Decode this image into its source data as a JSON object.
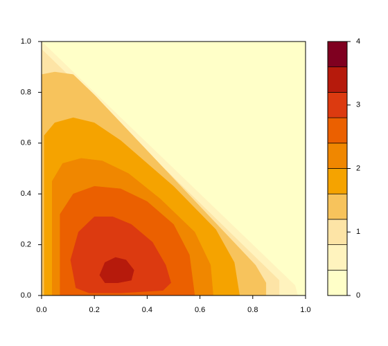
{
  "chart_data": {
    "type": "contour",
    "xlim": [
      0,
      1
    ],
    "ylim": [
      0,
      1
    ],
    "xticks": [
      {
        "value": 0,
        "label": "0.0"
      },
      {
        "value": 0.2,
        "label": "0.2"
      },
      {
        "value": 0.4,
        "label": "0.4"
      },
      {
        "value": 0.6,
        "label": "0.6"
      },
      {
        "value": 0.8,
        "label": "0.8"
      },
      {
        "value": 1,
        "label": "1.0"
      }
    ],
    "yticks": [
      {
        "value": 0,
        "label": "0.0"
      },
      {
        "value": 0.2,
        "label": "0.2"
      },
      {
        "value": 0.4,
        "label": "0.4"
      },
      {
        "value": 0.6,
        "label": "0.6"
      },
      {
        "value": 0.8,
        "label": "0.8"
      },
      {
        "value": 1,
        "label": "1.0"
      }
    ],
    "levels": [
      0,
      0.4,
      0.8,
      1.2,
      1.6,
      2,
      2.4,
      2.8,
      3.2,
      3.6,
      4
    ],
    "colors": [
      "#FFFFC8",
      "#FFF3BE",
      "#FDE4A6",
      "#F7C35C",
      "#F5A300",
      "#F08700",
      "#EB6000",
      "#DC3A10",
      "#B61A0C",
      "#7F0020"
    ],
    "zlim": [
      0,
      4
    ],
    "zticks": [
      0,
      1,
      2,
      3,
      4
    ],
    "regions": [
      {
        "level": 0.4,
        "polygon": [
          [
            0,
            0
          ],
          [
            0,
            1
          ],
          [
            0.96,
            0.04
          ],
          [
            0.97,
            0
          ]
        ]
      },
      {
        "level": 0.8,
        "polygon": [
          [
            0,
            0
          ],
          [
            0,
            0.97
          ],
          [
            0.9,
            0.06
          ],
          [
            0.9,
            0
          ]
        ]
      },
      {
        "level": 1.2,
        "polygon": [
          [
            0,
            0
          ],
          [
            0,
            0.87
          ],
          [
            0.05,
            0.88
          ],
          [
            0.12,
            0.87
          ],
          [
            0.2,
            0.79
          ],
          [
            0.81,
            0.12
          ],
          [
            0.85,
            0.05
          ],
          [
            0.85,
            0
          ]
        ]
      },
      {
        "level": 1.6,
        "polygon": [
          [
            0.01,
            0
          ],
          [
            0.01,
            0.63
          ],
          [
            0.05,
            0.68
          ],
          [
            0.12,
            0.7
          ],
          [
            0.2,
            0.68
          ],
          [
            0.3,
            0.61
          ],
          [
            0.5,
            0.43
          ],
          [
            0.66,
            0.26
          ],
          [
            0.73,
            0.13
          ],
          [
            0.75,
            0
          ]
        ]
      },
      {
        "level": 2,
        "polygon": [
          [
            0.04,
            0
          ],
          [
            0.04,
            0.45
          ],
          [
            0.08,
            0.52
          ],
          [
            0.15,
            0.54
          ],
          [
            0.23,
            0.53
          ],
          [
            0.33,
            0.48
          ],
          [
            0.45,
            0.38
          ],
          [
            0.58,
            0.25
          ],
          [
            0.64,
            0.12
          ],
          [
            0.65,
            0
          ]
        ]
      },
      {
        "level": 2.4,
        "polygon": [
          [
            0.07,
            0
          ],
          [
            0.07,
            0.32
          ],
          [
            0.12,
            0.4
          ],
          [
            0.2,
            0.43
          ],
          [
            0.3,
            0.42
          ],
          [
            0.4,
            0.37
          ],
          [
            0.5,
            0.28
          ],
          [
            0.56,
            0.16
          ],
          [
            0.58,
            0
          ]
        ]
      },
      {
        "level": 2.8,
        "polygon": [
          [
            0.13,
            0.03
          ],
          [
            0.11,
            0.14
          ],
          [
            0.14,
            0.25
          ],
          [
            0.2,
            0.31
          ],
          [
            0.27,
            0.31
          ],
          [
            0.34,
            0.28
          ],
          [
            0.42,
            0.21
          ],
          [
            0.47,
            0.12
          ],
          [
            0.49,
            0.05
          ],
          [
            0.46,
            0.02
          ],
          [
            0.3,
            0.01
          ],
          [
            0.18,
            0.01
          ]
        ]
      },
      {
        "level": 3.2,
        "polygon": [
          [
            0.22,
            0.08
          ],
          [
            0.24,
            0.13
          ],
          [
            0.28,
            0.15
          ],
          [
            0.32,
            0.14
          ],
          [
            0.35,
            0.1
          ],
          [
            0.34,
            0.06
          ],
          [
            0.29,
            0.05
          ],
          [
            0.24,
            0.05
          ]
        ]
      }
    ]
  }
}
